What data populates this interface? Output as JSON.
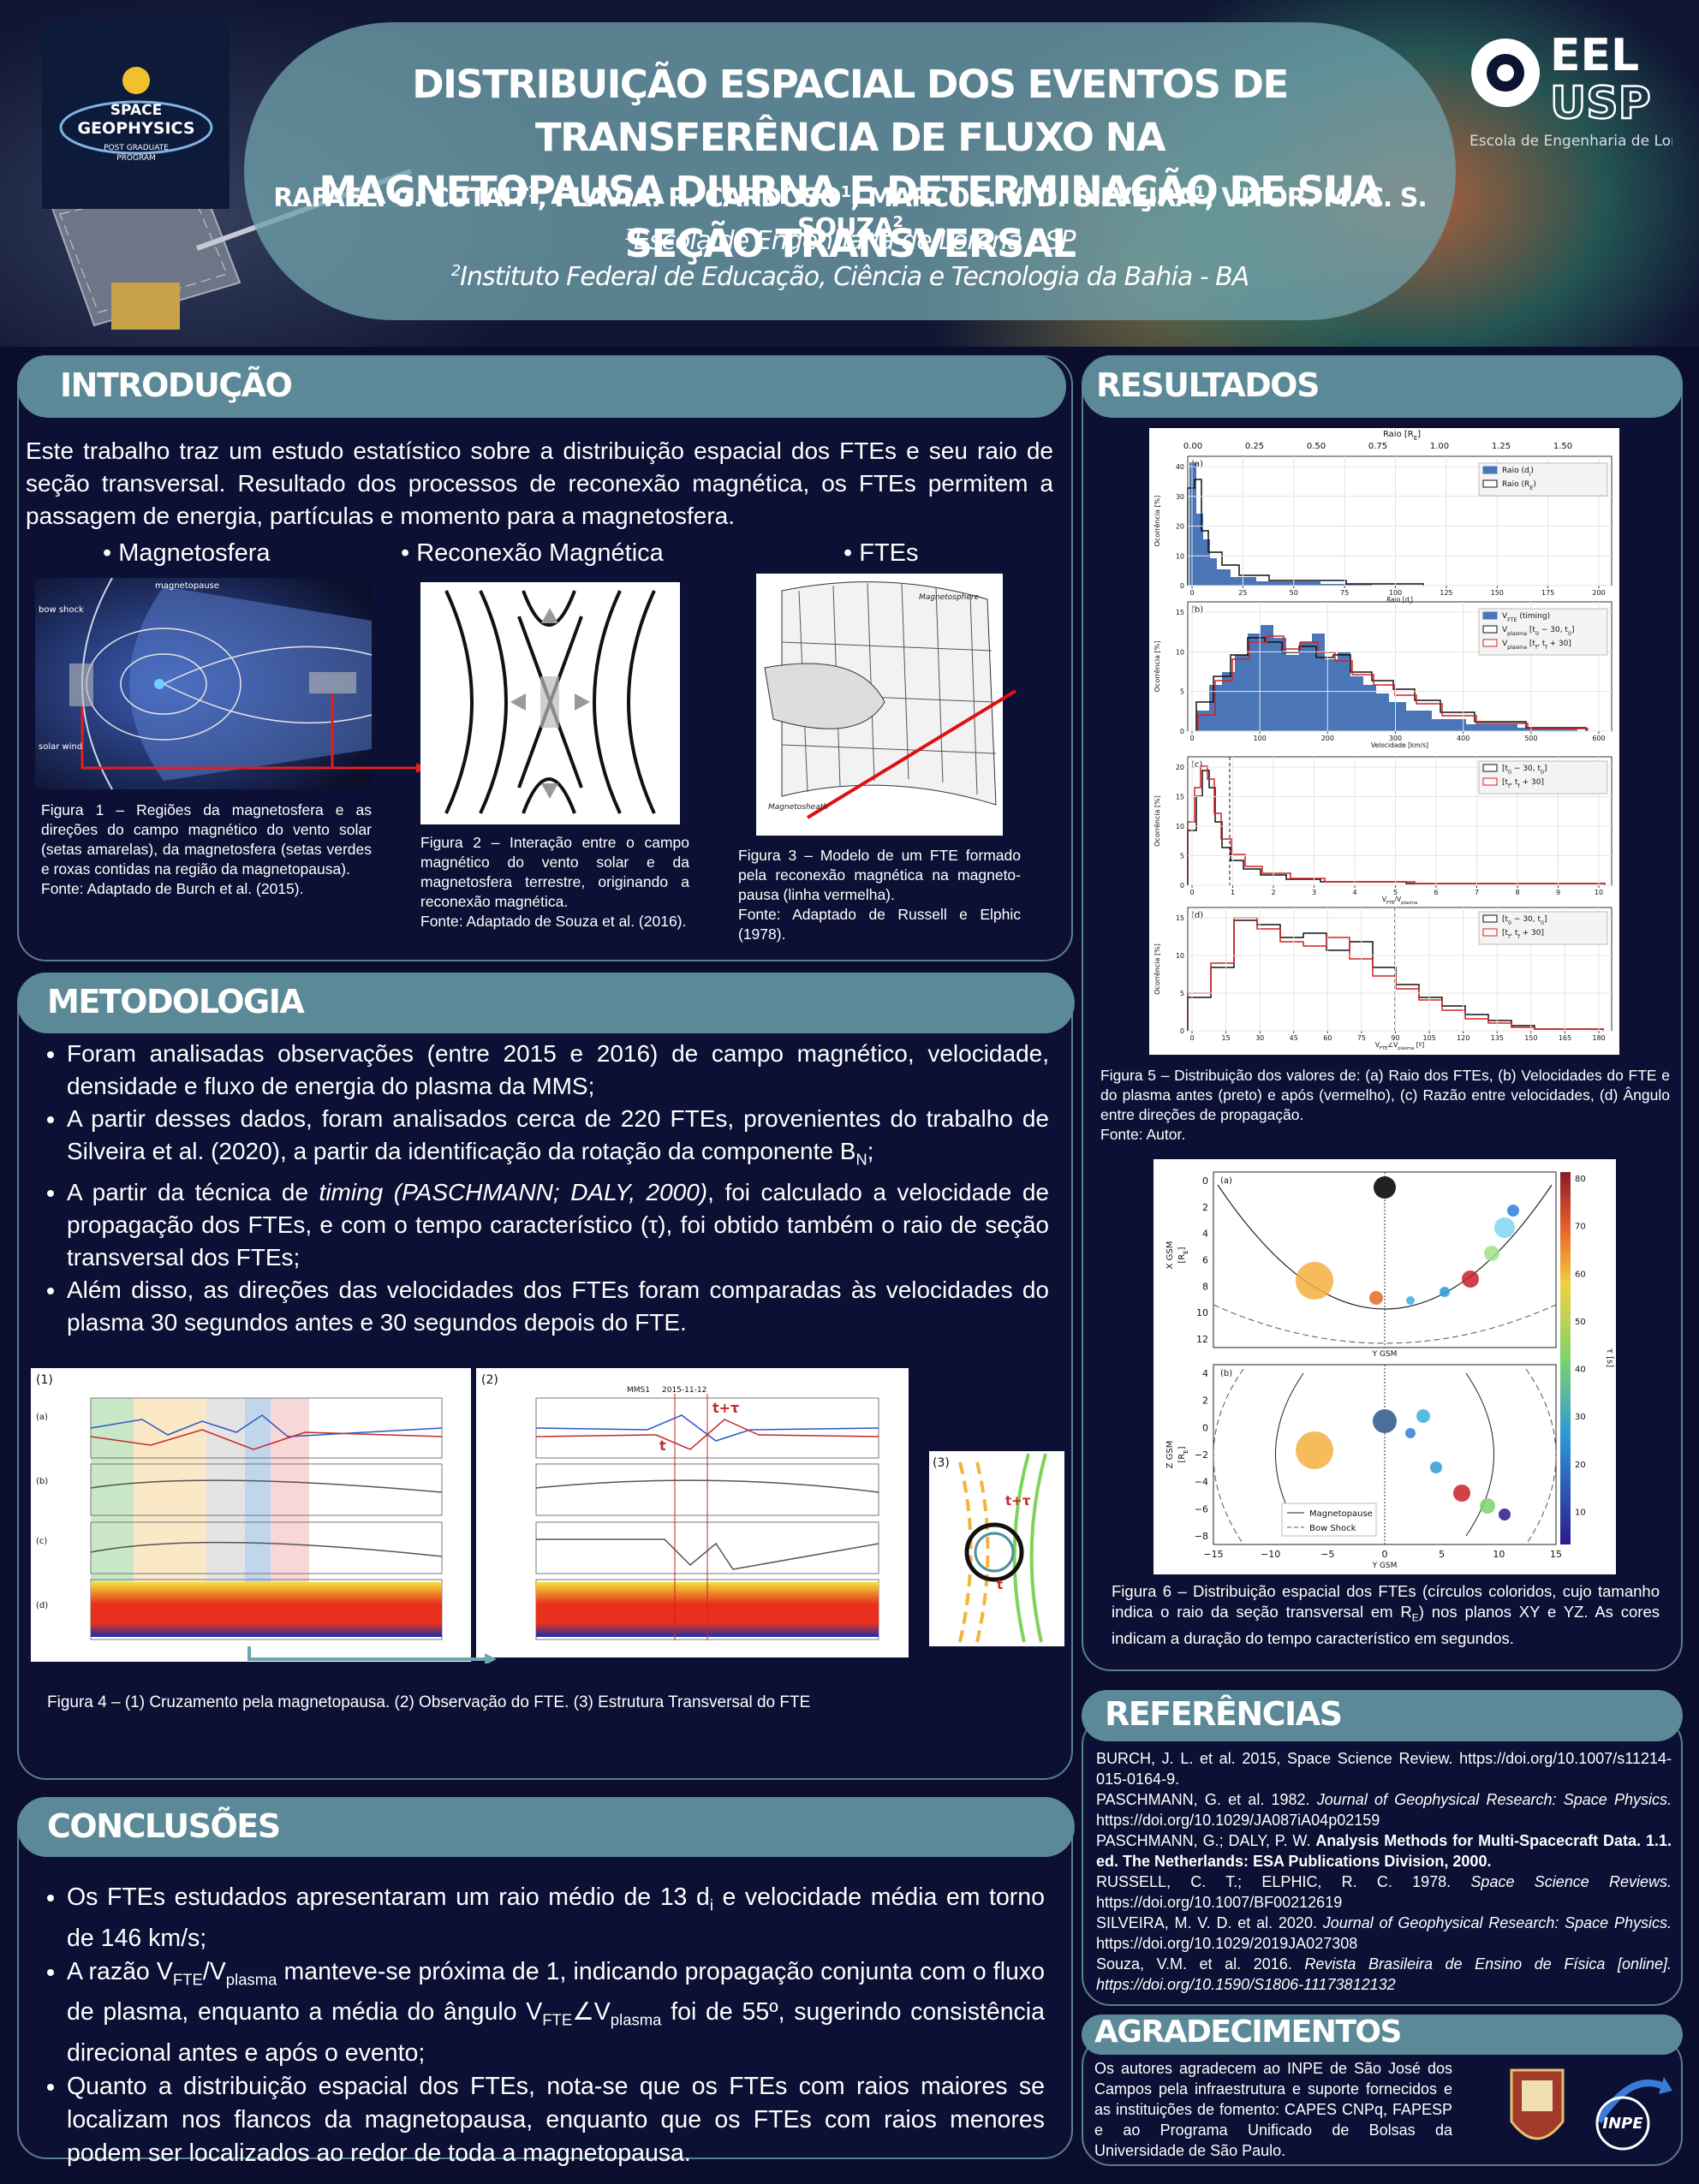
{
  "header": {
    "logo_left": [
      "SPACE",
      "GEOPHYSICS",
      "POST GRADUATE",
      "PROGRAM"
    ],
    "title": [
      "DISTRIBUIÇÃO ESPACIAL DOS EVENTOS DE TRANSFERÊNCIA DE FLUXO NA",
      "MAGNETOPAUSA DIURNA E DETERMINAÇÃO DE SUA SEÇÃO TRANSVERSAL"
    ],
    "authors": [
      "RAFAEL. G. CUTAIT",
      "1",
      ", FLAVIA. R. CARDOSO",
      "1",
      ", MARCOS. V. D. SILVEIRA",
      "1",
      ", VITOR. M. C. S. SOUZA",
      "2"
    ],
    "affiliations": [
      [
        "1",
        "Escola de Engenharia de Lorena - SP"
      ],
      [
        "2",
        "Instituto Federal de Educação, Ciência e Tecnologia da Bahia - BA"
      ]
    ],
    "logo_right": {
      "mark": [
        "EEL",
        "USP"
      ],
      "name": "Escola de Engenharia de Lorena"
    }
  },
  "introduction": {
    "title": "INTRODUÇÃO",
    "text": "Este trabalho traz um estudo estatístico sobre a distribuição espacial dos FTEs e seu raio de seção transversal. Resultado dos processos de reconexão magnética, os FTEs permitem a passagem de energia, partículas e momento para a magnetosfera.",
    "figures": [
      {
        "label": "Magnetosfera",
        "image_labels": [
          "magnetopause",
          "bow shock",
          "solar wind"
        ],
        "caption": "Figura 1 – Regiões da magnetosfera e as direções do campo magnético do vento solar (setas amarelas), da magnetosfera (setas verdes e roxas contidas na região da magnetopausa).",
        "source": "Fonte: Adaptado de Burch et al. (2015)."
      },
      {
        "label": "Reconexão Magnética",
        "caption": "Figura 2 – Interação entre o campo magnético do vento solar e da magnetosfera terrestre, originando a reconexão magnética.",
        "source": "Fonte: Adaptado de Souza et al. (2016)."
      },
      {
        "label": "FTEs",
        "image_labels": [
          "Magnetosphere",
          "Magnetosheath"
        ],
        "caption": "Figura 3 – Modelo de um FTE formado pela reconexão magnética na magneto-pausa (linha vermelha).",
        "source": "Fonte: Adaptado de Russell e Elphic (1978)."
      }
    ]
  },
  "methodology": {
    "title": "METODOLOGIA",
    "bullets": [
      [
        "Foram analisadas observações (entre 2015 e 2016) de campo magnético, velocidade, densidade e fluxo de energia do plasma da MMS;"
      ],
      [
        "A partir desses dados, foram analisados cerca de 220 FTEs, provenientes do trabalho de Silveira et al. (2020), a partir da identificação da rotação da componente B",
        "N",
        ";"
      ],
      [
        "A partir da técnica de ",
        "timing (PASCHMANN; DALY, 2000)",
        ", foi calculado a velocidade de propagação dos FTEs, e com o tempo característico (τ), foi obtido também o raio de seção transversal dos FTEs;"
      ],
      [
        "Além disso, as direções das velocidades dos FTEs foram comparadas às velocidades do plasma 30 segundos antes e 30 segundos depois do FTE."
      ]
    ],
    "figure": {
      "panels": [
        "(1)",
        "(2)",
        "(3)"
      ],
      "rows": [
        "(a)",
        "(b)",
        "(c)",
        "(d)"
      ],
      "image_labels": [
        "MMS1",
        "2015-11-12",
        "t",
        "t+τ",
        "t+τ",
        "t"
      ],
      "caption": "Figura 4 – (1) Cruzamento pela magnetopausa. (2) Observação do FTE. (3) Estrutura Transversal do FTE"
    }
  },
  "conclusions": {
    "title": "CONCLUSÕES",
    "bullets": [
      [
        "Os FTEs estudados apresentaram um raio médio de 13 d",
        "i",
        " e velocidade média em torno de 146 km/s;"
      ],
      [
        "A razão V",
        "FTE",
        "/V",
        "plasma",
        " manteve-se próxima de 1, indicando propagação conjunta com o fluxo de plasma, enquanto a média do ângulo V",
        "FTE",
        "∠V",
        "plasma",
        " foi de 55º, sugerindo consistência direcional antes e após o evento;"
      ],
      [
        "Quanto a distribuição espacial dos FTEs, nota-se que os FTEs com raios maiores se localizam nos flancos da magnetopausa, enquanto que os FTEs com raios menores podem ser localizados ao redor de toda a magnetopausa."
      ]
    ]
  },
  "results": {
    "title": "RESULTADOS",
    "figure5": {
      "top_axis_label": [
        "Raio [R",
        "E",
        "]"
      ],
      "top_ticks": [
        "0.00",
        "0.25",
        "0.50",
        "0.75",
        "1.00",
        "1.25",
        "1.50"
      ],
      "ylabel": "Ocorrência [%]",
      "panels": [
        {
          "label": "(a)",
          "xlabel": [
            "Raio [d",
            "i",
            "]"
          ],
          "xticks": [
            "0",
            "25",
            "50",
            "75",
            "100",
            "125",
            "150",
            "175",
            "200"
          ],
          "yticks": [
            "0",
            "10",
            "20",
            "30",
            "40"
          ],
          "legend": [
            [
              "Raio (d",
              "i",
              ")"
            ],
            [
              "Raio (R",
              "E",
              ")"
            ]
          ]
        },
        {
          "label": "(b)",
          "xlabel": [
            "Velocidade [km/s]"
          ],
          "xticks": [
            "0",
            "100",
            "200",
            "300",
            "400",
            "500",
            "600"
          ],
          "yticks": [
            "0",
            "5",
            "10",
            "15"
          ],
          "legend": [
            [
              "V",
              "FTE",
              " (timing)"
            ],
            [
              "V",
              "plasma",
              " [t",
              "0",
              " − 30, t",
              "0",
              "]"
            ],
            [
              "V",
              "plasma",
              " [t",
              "f",
              ", t",
              "f",
              " + 30]"
            ]
          ]
        },
        {
          "label": "(c)",
          "xlabel": [
            "V",
            "FTE",
            "/V",
            "plasma"
          ],
          "xticks": [
            "0",
            "1",
            "2",
            "3",
            "4",
            "5",
            "6",
            "7",
            "8",
            "9",
            "10"
          ],
          "yticks": [
            "0",
            "5",
            "10",
            "15",
            "20"
          ],
          "legend": [
            [
              "[t",
              "0",
              " − 30, t",
              "0",
              "]"
            ],
            [
              "[t",
              "f",
              ", t",
              "f",
              " + 30]"
            ]
          ]
        },
        {
          "label": "(d)",
          "xlabel": [
            "V",
            "FTE",
            "∠V",
            "plasma",
            " [º]"
          ],
          "xticks": [
            "0",
            "15",
            "30",
            "45",
            "60",
            "75",
            "90",
            "105",
            "120",
            "135",
            "150",
            "165",
            "180"
          ],
          "yticks": [
            "0",
            "5",
            "10",
            "15"
          ],
          "legend": [
            [
              "[t",
              "0",
              " − 30, t",
              "0",
              "]"
            ],
            [
              "[t",
              "f",
              ", t",
              "f",
              " + 30]"
            ]
          ]
        }
      ],
      "caption": "Figura 5 – Distribuição dos valores de: (a) Raio dos FTEs, (b) Velocidades do FTE e do plasma antes (preto) e após (vermelho), (c) Razão entre velocidades, (d) Ângulo entre direções de propagação.",
      "source": "Fonte: Autor."
    },
    "figure6": {
      "panels": [
        "(a)",
        "(b)"
      ],
      "axis_labels": [
        "X GSM",
        "Y GSM",
        "Z GSM"
      ],
      "unit": [
        "[R",
        "E",
        "]"
      ],
      "yticks_a": [
        "0",
        "2",
        "4",
        "6",
        "8",
        "10",
        "12"
      ],
      "yticks_b": [
        "4",
        "2",
        "0",
        "−2",
        "−4",
        "−6",
        "−8"
      ],
      "xticks": [
        "−15",
        "−10",
        "−5",
        "0",
        "5",
        "10",
        "15"
      ],
      "colorbar_label": "τ [s]",
      "colorbar_ticks": [
        "80",
        "70",
        "60",
        "50",
        "40",
        "30",
        "20",
        "10"
      ],
      "legend": [
        "Magnetopause",
        "Bow Shock"
      ],
      "caption": [
        "Figura 6 – Distribuição espacial dos FTEs (círculos coloridos, cujo tamanho indica o raio da seção transversal em R",
        "E",
        ") nos planos XY e YZ. As cores indicam a duração do tempo característico em segundos."
      ]
    }
  },
  "references": {
    "title": "REFERÊNCIAS",
    "items": [
      [
        "BURCH, J. L. et al. 2015, Space Science Review.  https://doi.org/10.1007/s11214-015-0164-9."
      ],
      [
        "PASCHMANN, G. et al. 1982. ",
        "Journal of Geophysical Research: Space Physics.",
        " https://doi.org/10.1029/JA087iA04p02159"
      ],
      [
        "PASCHMANN, G.; DALY, P. W. ",
        "Analysis Methods for Multi-Spacecraft Data. 1.1. ed. The Netherlands: ESA Publications Division, 2000."
      ],
      [
        "RUSSELL, C. T.; ELPHIC, R. C. 1978. ",
        "Space Science Reviews.",
        " https://doi.org/10.1007/BF00212619"
      ],
      [
        "SILVEIRA, M. V. D. et al. 2020. ",
        "Journal of Geophysical Research: Space Physics.",
        " https://doi.org/10.1029/2019JA027308"
      ],
      [
        "Souza, V.M. et al. 2016. ",
        "Revista Brasileira de Ensino de Física [online]. https://doi.org/10.1590/S1806-11173812132"
      ]
    ]
  },
  "acknowledgements": {
    "title": "AGRADECIMENTOS",
    "text": "Os autores agradecem ao INPE de São José dos Campos pela infraestrutura e suporte fornecidos e as instituições de fomento: CAPES CNPq, FAPESP e ao Programa Unificado de Bolsas da Universidade de São Paulo.",
    "logos": [
      "INPE"
    ]
  }
}
